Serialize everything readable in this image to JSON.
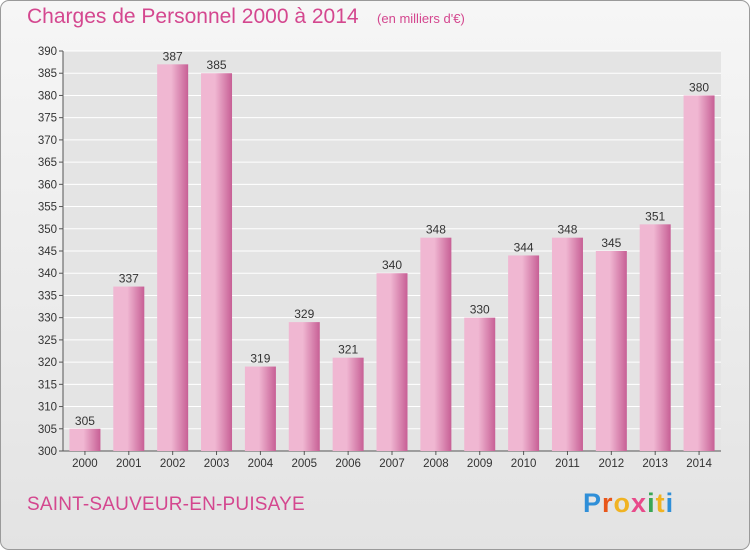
{
  "header": {
    "title": "Charges de Personnel 2000 à 2014",
    "subtitle": "(en milliers d'€)"
  },
  "footer": {
    "city": "SAINT-SAUVEUR-EN-PUISAYE",
    "logo": "Proxiti",
    "logo_colors": [
      "#2f8fd8",
      "#e8561a",
      "#f0b323",
      "#e84a8a",
      "#3aa655",
      "#f0b323",
      "#2f8fd8"
    ]
  },
  "colors": {
    "bar_light": "#f0b7d2",
    "bar_dark": "#c75f95",
    "title": "#d4478f",
    "grid": "#ffffff"
  },
  "chart_data": {
    "type": "bar",
    "title": "Charges de Personnel 2000 à 2014",
    "subtitle": "(en milliers d'€)",
    "categories": [
      "2000",
      "2001",
      "2002",
      "2003",
      "2004",
      "2005",
      "2006",
      "2007",
      "2008",
      "2009",
      "2010",
      "2011",
      "2012",
      "2013",
      "2014"
    ],
    "values": [
      305,
      337,
      387,
      385,
      319,
      329,
      321,
      340,
      348,
      330,
      344,
      348,
      345,
      351,
      380
    ],
    "ylim": [
      300,
      390
    ],
    "ytick_step": 5,
    "grid": true,
    "legend": false
  }
}
